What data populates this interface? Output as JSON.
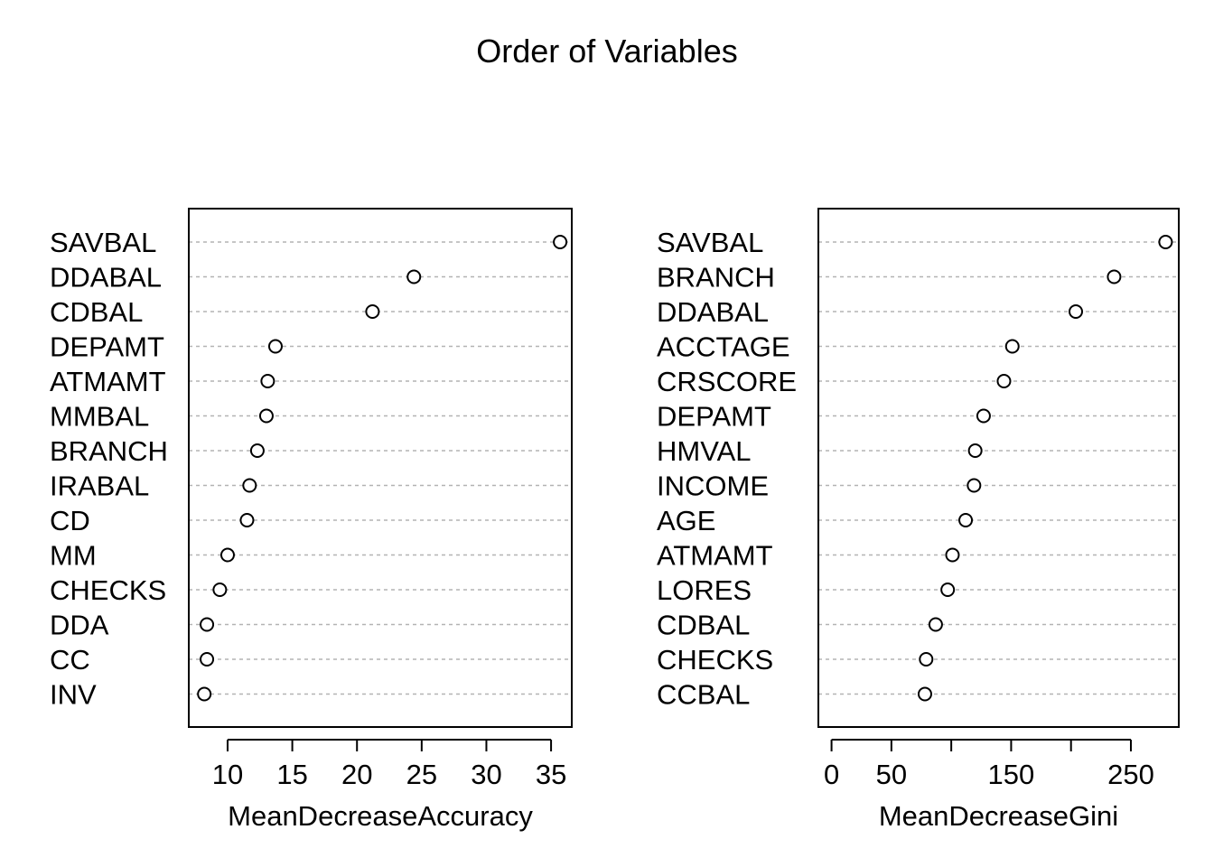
{
  "title": "Order of Variables",
  "chart_data": [
    {
      "type": "scatter",
      "subtype": "dotchart",
      "xlabel": "MeanDecreaseAccuracy",
      "xlim": [
        7.0,
        36.6
      ],
      "xticks": [
        10,
        15,
        20,
        25,
        30,
        35
      ],
      "gridlines": "horizontal-dotted",
      "categories": [
        "SAVBAL",
        "DDABAL",
        "CDBAL",
        "DEPAMT",
        "ATMAMT",
        "MMBAL",
        "BRANCH",
        "IRABAL",
        "CD",
        "MM",
        "CHECKS",
        "DDA",
        "CC",
        "INV"
      ],
      "values": [
        35.7,
        24.4,
        21.2,
        13.7,
        13.1,
        13.0,
        12.3,
        11.7,
        11.5,
        10.0,
        9.4,
        8.4,
        8.4,
        8.2
      ]
    },
    {
      "type": "scatter",
      "subtype": "dotchart",
      "xlabel": "MeanDecreaseGini",
      "xlim": [
        -11,
        290
      ],
      "xticks": [
        0,
        50,
        100,
        150,
        200,
        250
      ],
      "xtick_labels": [
        "0",
        "50",
        "",
        "150",
        "",
        "250"
      ],
      "gridlines": "horizontal-dotted",
      "categories": [
        "SAVBAL",
        "BRANCH",
        "DDABAL",
        "ACCTAGE",
        "CRSCORE",
        "DEPAMT",
        "HMVAL",
        "INCOME",
        "AGE",
        "ATMAMT",
        "LORES",
        "CDBAL",
        "CHECKS",
        "CCBAL"
      ],
      "values": [
        279,
        236,
        204,
        151,
        144,
        127,
        120,
        119,
        112,
        101,
        97,
        87,
        79,
        78
      ]
    }
  ]
}
